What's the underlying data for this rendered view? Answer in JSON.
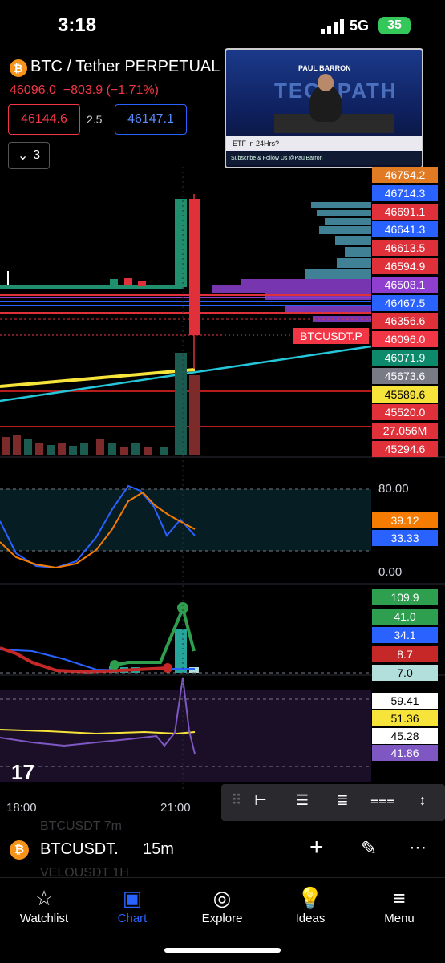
{
  "status": {
    "time": "3:18",
    "network": "5G",
    "battery": "35"
  },
  "symbol": {
    "title": "BTC / Tether PERPETUAL",
    "last": "46096.0",
    "change": "−803.9 (−1.71%)",
    "bid": "46144.6",
    "spread": "2.5",
    "ask": "46147.1",
    "indicators_count": "3"
  },
  "video": {
    "brand": "PAUL BARRON",
    "show": "TECHPATH",
    "ticker": "ETF in 24Hrs?",
    "subticker": "Subscribe & Follow Us  @PaulBarron"
  },
  "price_scale": [
    {
      "value": "46754.2",
      "color": "#e07b24"
    },
    {
      "value": "46714.3",
      "color": "#2962ff"
    },
    {
      "value": "46691.1",
      "color": "#e0313b"
    },
    {
      "value": "46641.3",
      "color": "#2962ff"
    },
    {
      "value": "46613.5",
      "color": "#e0313b"
    },
    {
      "value": "46594.9",
      "color": "#e0313b"
    },
    {
      "value": "46508.1",
      "color": "#8e3fcf"
    },
    {
      "value": "46467.5",
      "color": "#2962ff"
    },
    {
      "value": "46356.6",
      "color": "#e0313b"
    },
    {
      "value": "46096.0",
      "color": "#f23645"
    },
    {
      "value": "46071.9",
      "color": "#0c8a6b"
    },
    {
      "value": "45673.6",
      "color": "#787b86"
    },
    {
      "value": "45589.6",
      "color": "#f7e43a"
    },
    {
      "value": "45520.0",
      "color": "#e0313b"
    },
    {
      "value": "27.056M",
      "color": "#e0313b"
    },
    {
      "value": "45294.6",
      "color": "#e0313b"
    }
  ],
  "symbol_tag": "BTCUSDT.P",
  "stoch": {
    "upper": "80.00",
    "lower": "0.00",
    "k": "39.12",
    "d": "33.33",
    "k_color": "#f57c00",
    "d_color": "#2962ff"
  },
  "pane3": [
    {
      "value": "109.9",
      "color": "#2e9e4f"
    },
    {
      "value": "41.0",
      "color": "#2e9e4f"
    },
    {
      "value": "34.1",
      "color": "#2962ff"
    },
    {
      "value": "8.7",
      "color": "#c62828"
    },
    {
      "value": "7.0",
      "color": "#b2dfdb"
    }
  ],
  "pane4": [
    {
      "value": "59.41",
      "color": "#ffffff"
    },
    {
      "value": "51.36",
      "color": "#f7e43a"
    },
    {
      "value": "45.28",
      "color": "#ffffff"
    },
    {
      "value": "41.86",
      "color": "#7e57c2"
    }
  ],
  "time_axis": [
    "18:00",
    "21:00"
  ],
  "bottom_symbol": {
    "name": "BTCUSDT.",
    "interval": "15m",
    "ghost_top": "BTCUSDT  7m",
    "ghost_bottom": "VELOUSDT  1H"
  },
  "nav": [
    {
      "label": "Watchlist",
      "icon": "☆"
    },
    {
      "label": "Chart",
      "icon": "▣"
    },
    {
      "label": "Explore",
      "icon": "◎"
    },
    {
      "label": "Ideas",
      "icon": "💡"
    },
    {
      "label": "Menu",
      "icon": "≡"
    }
  ]
}
